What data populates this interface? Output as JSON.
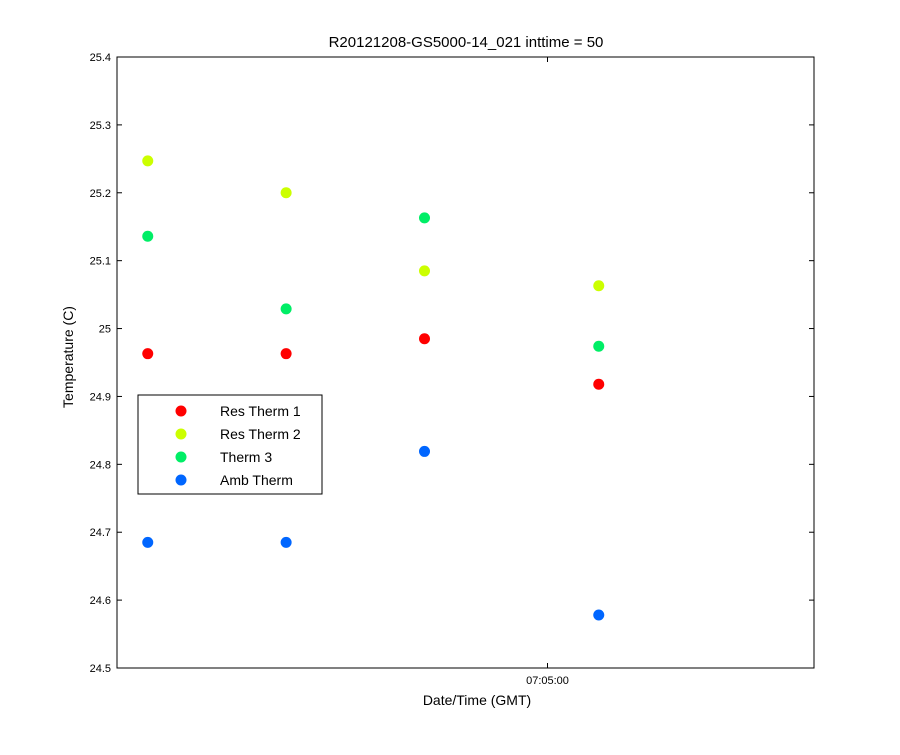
{
  "chart_data": {
    "type": "scatter",
    "title": "R20121208-GS5000-14_021 inttime = 50",
    "xlabel": "Date/Time (GMT)",
    "ylabel": "Temperature (C)",
    "ylim": [
      24.5,
      25.4
    ],
    "yticks": [
      "24.5",
      "24.6",
      "24.7",
      "24.8",
      "24.9",
      "25",
      "25.1",
      "25.2",
      "25.3",
      "25.4"
    ],
    "xlim": [
      "07:03:36",
      "07:05:52"
    ],
    "xticks": [
      "07:05:00"
    ],
    "x": [
      "07:03:42",
      "07:04:09",
      "07:04:36",
      "07:05:10"
    ],
    "series": [
      {
        "name": "Res Therm 1",
        "color": "#ff0000",
        "values": [
          24.963,
          24.963,
          24.985,
          24.918
        ]
      },
      {
        "name": "Res Therm 2",
        "color": "#ccff00",
        "values": [
          25.247,
          25.2,
          25.085,
          25.063
        ]
      },
      {
        "name": "Therm 3",
        "color": "#00ee66",
        "values": [
          25.136,
          25.029,
          25.163,
          24.974
        ]
      },
      {
        "name": "Amb Therm",
        "color": "#0066ff",
        "values": [
          24.685,
          24.685,
          24.819,
          24.578
        ]
      }
    ],
    "grid": false,
    "legend": "left"
  }
}
